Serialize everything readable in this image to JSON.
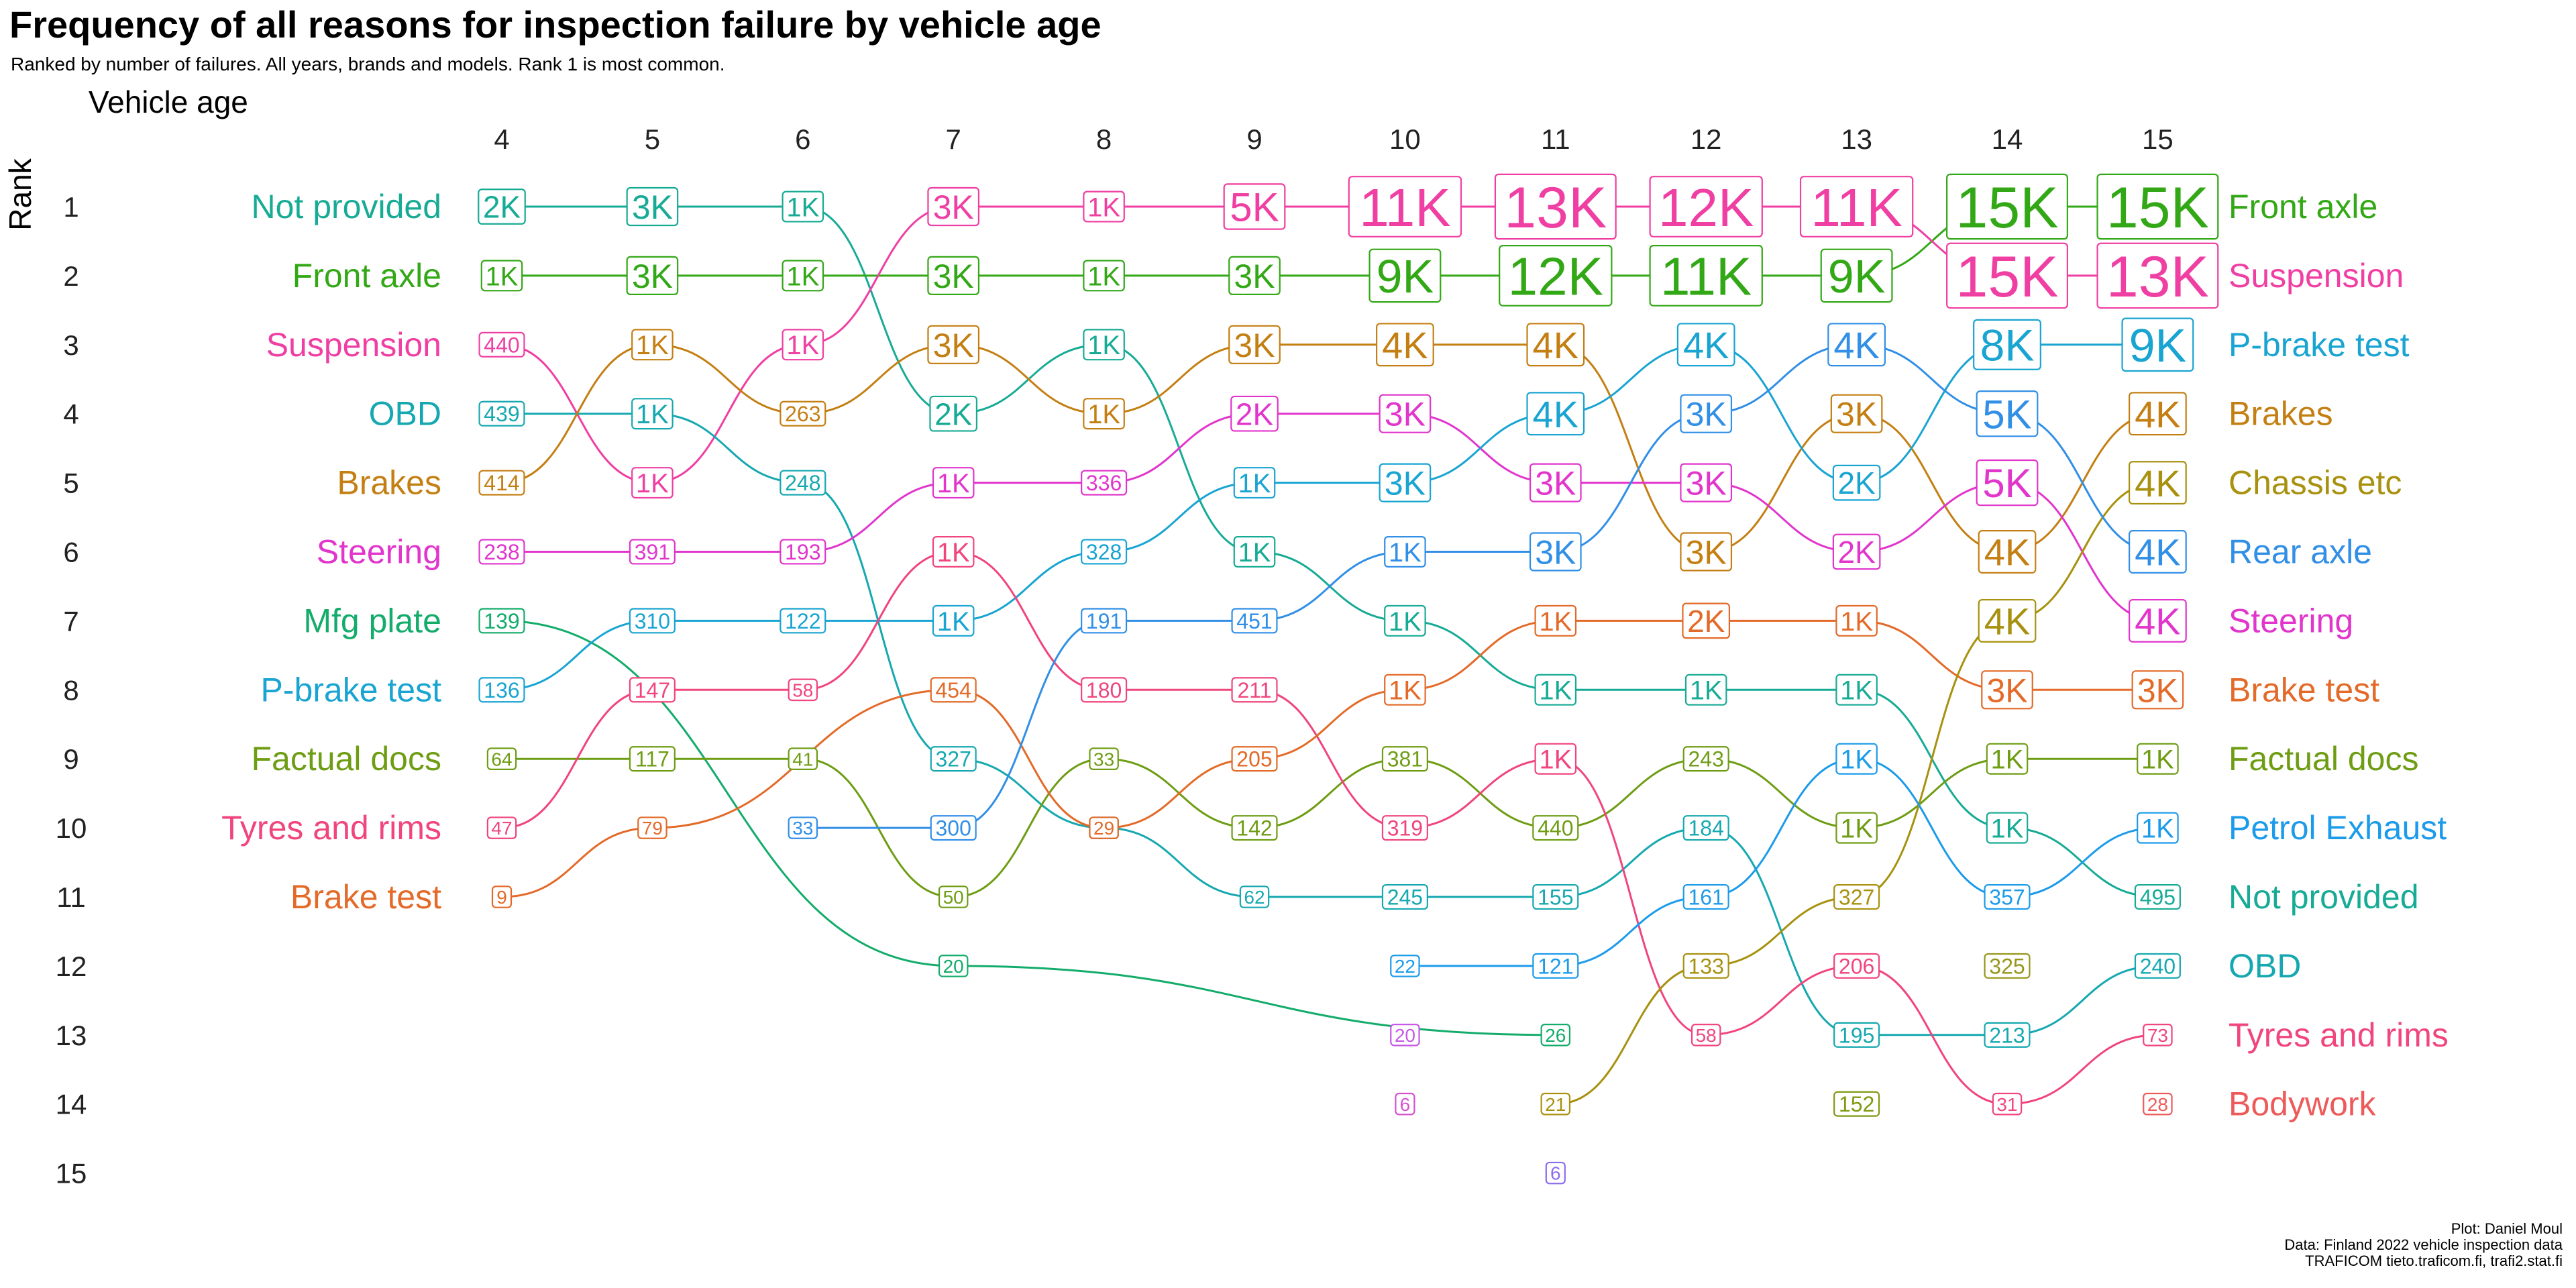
{
  "title": "Frequency of all reasons for inspection failure by vehicle age",
  "subtitle": "Ranked by number of failures. All years, brands and models. Rank 1 is most common.",
  "caption": [
    "Plot: Daniel Moul",
    "Data: Finland 2022 vehicle inspection data",
    "TRAFICOM tieto.traficom.fi, trafi2.stat.fi"
  ],
  "colors": {
    "Not provided": "#17ab95",
    "Front axle": "#33a816",
    "Suspension": "#ef3fa3",
    "OBD": "#16a8b0",
    "Brakes": "#c47f13",
    "Steering": "#e135cc",
    "Mfg plate": "#13ac6a",
    "P-brake test": "#19a4d2",
    "Factual docs": "#6e9d14",
    "Tyres and rims": "#f0457d",
    "Brake test": "#e36a28",
    "Chassis etc": "#a7910e",
    "Rear axle": "#318fe6",
    "Petrol Exhaust": "#1c9bea",
    "Bodywork": "#ee5a5a",
    "Other": "#8b6cf0"
  },
  "chart_data": {
    "type": "bump",
    "title": "Frequency of all reasons for inspection failure by vehicle age",
    "subtitle": "Ranked by number of failures. All years, brands and models. Rank 1 is most common.",
    "xlabel": "Vehicle age",
    "ylabel": "Rank",
    "x": [
      4,
      5,
      6,
      7,
      8,
      9,
      10,
      11,
      12,
      13,
      14,
      15
    ],
    "ranks": [
      1,
      2,
      3,
      4,
      5,
      6,
      7,
      8,
      9,
      10,
      11,
      12,
      13,
      14,
      15
    ],
    "left_labels": [
      "Not provided",
      "Front axle",
      "Suspension",
      "OBD",
      "Brakes",
      "Steering",
      "Mfg plate",
      "P-brake test",
      "Factual docs",
      "Tyres and rims",
      "Brake test"
    ],
    "right_labels": [
      "Front axle",
      "Suspension",
      "P-brake test",
      "Brakes",
      "Chassis etc",
      "Rear axle",
      "Steering",
      "Brake test",
      "Factual docs",
      "Petrol Exhaust",
      "Not provided",
      "OBD",
      "Tyres and rims",
      "Bodywork"
    ],
    "series": [
      {
        "name": "Not provided",
        "points": [
          [
            4,
            1,
            "2K"
          ],
          [
            5,
            1,
            "3K"
          ],
          [
            6,
            1,
            "1K"
          ],
          [
            7,
            4,
            "2K"
          ],
          [
            8,
            3,
            "1K"
          ],
          [
            9,
            6,
            "1K"
          ],
          [
            10,
            7,
            "1K"
          ],
          [
            11,
            8,
            "1K"
          ],
          [
            12,
            8,
            "1K"
          ],
          [
            13,
            8,
            "1K"
          ],
          [
            14,
            10,
            "1K"
          ],
          [
            15,
            11,
            "495"
          ]
        ]
      },
      {
        "name": "Front axle",
        "points": [
          [
            4,
            2,
            "1K"
          ],
          [
            5,
            2,
            "3K"
          ],
          [
            6,
            2,
            "1K"
          ],
          [
            7,
            2,
            "3K"
          ],
          [
            8,
            2,
            "1K"
          ],
          [
            9,
            2,
            "3K"
          ],
          [
            10,
            2,
            "9K"
          ],
          [
            11,
            2,
            "12K"
          ],
          [
            12,
            2,
            "11K"
          ],
          [
            13,
            2,
            "9K"
          ],
          [
            14,
            1,
            "15K"
          ],
          [
            15,
            1,
            "15K"
          ]
        ]
      },
      {
        "name": "Suspension",
        "points": [
          [
            4,
            3,
            "440"
          ],
          [
            5,
            5,
            "1K"
          ],
          [
            6,
            3,
            "1K"
          ],
          [
            7,
            1,
            "3K"
          ],
          [
            8,
            1,
            "1K"
          ],
          [
            9,
            1,
            "5K"
          ],
          [
            10,
            1,
            "11K"
          ],
          [
            11,
            1,
            "13K"
          ],
          [
            12,
            1,
            "12K"
          ],
          [
            13,
            1,
            "11K"
          ],
          [
            14,
            2,
            "15K"
          ],
          [
            15,
            2,
            "13K"
          ]
        ]
      },
      {
        "name": "OBD",
        "points": [
          [
            4,
            4,
            "439"
          ],
          [
            5,
            4,
            "1K"
          ],
          [
            6,
            5,
            "248"
          ],
          [
            7,
            9,
            "327"
          ],
          [
            8,
            10,
            "29"
          ],
          [
            9,
            11,
            "62"
          ],
          [
            10,
            11,
            "245"
          ],
          [
            11,
            11,
            "155"
          ],
          [
            12,
            10,
            "184"
          ],
          [
            13,
            13,
            "195"
          ],
          [
            14,
            13,
            "213"
          ],
          [
            15,
            12,
            "240"
          ]
        ]
      },
      {
        "name": "Brakes",
        "points": [
          [
            4,
            5,
            "414"
          ],
          [
            5,
            3,
            "1K"
          ],
          [
            6,
            4,
            "263"
          ],
          [
            7,
            3,
            "3K"
          ],
          [
            8,
            4,
            "1K"
          ],
          [
            9,
            3,
            "3K"
          ],
          [
            10,
            3,
            "4K"
          ],
          [
            11,
            3,
            "4K"
          ],
          [
            12,
            6,
            "3K"
          ],
          [
            13,
            4,
            "3K"
          ],
          [
            14,
            6,
            "4K"
          ],
          [
            15,
            4,
            "4K"
          ]
        ]
      },
      {
        "name": "Steering",
        "points": [
          [
            4,
            6,
            "238"
          ],
          [
            5,
            6,
            "391"
          ],
          [
            6,
            6,
            "193"
          ],
          [
            7,
            5,
            "1K"
          ],
          [
            8,
            5,
            "336"
          ],
          [
            9,
            4,
            "2K"
          ],
          [
            10,
            4,
            "3K"
          ],
          [
            11,
            5,
            "3K"
          ],
          [
            12,
            5,
            "3K"
          ],
          [
            13,
            6,
            "2K"
          ],
          [
            14,
            5,
            "5K"
          ],
          [
            15,
            7,
            "4K"
          ]
        ]
      },
      {
        "name": "Mfg plate",
        "points": [
          [
            4,
            7,
            "139"
          ],
          [
            7,
            12,
            "20"
          ],
          [
            11,
            13,
            "26"
          ]
        ]
      },
      {
        "name": "P-brake test",
        "points": [
          [
            4,
            8,
            "136"
          ],
          [
            5,
            7,
            "310"
          ],
          [
            6,
            7,
            "122"
          ],
          [
            7,
            7,
            "1K"
          ],
          [
            8,
            6,
            "328"
          ],
          [
            9,
            5,
            "1K"
          ],
          [
            10,
            5,
            "3K"
          ],
          [
            11,
            4,
            "4K"
          ],
          [
            12,
            3,
            "4K"
          ],
          [
            13,
            5,
            "2K"
          ],
          [
            14,
            3,
            "8K"
          ],
          [
            15,
            3,
            "9K"
          ]
        ]
      },
      {
        "name": "Factual docs",
        "points": [
          [
            4,
            9,
            "64"
          ],
          [
            5,
            9,
            "117"
          ],
          [
            6,
            9,
            "41"
          ],
          [
            7,
            11,
            "50"
          ],
          [
            8,
            9,
            "33"
          ],
          [
            9,
            10,
            "142"
          ],
          [
            10,
            9,
            "381"
          ],
          [
            11,
            10,
            "440"
          ],
          [
            12,
            9,
            "243"
          ],
          [
            13,
            10,
            "1K"
          ],
          [
            14,
            9,
            "1K"
          ],
          [
            15,
            9,
            "1K"
          ]
        ]
      },
      {
        "name": "Tyres and rims",
        "points": [
          [
            4,
            10,
            "47"
          ],
          [
            5,
            8,
            "147"
          ],
          [
            6,
            8,
            "58"
          ],
          [
            7,
            6,
            "1K"
          ],
          [
            8,
            8,
            "180"
          ],
          [
            9,
            8,
            "211"
          ],
          [
            10,
            10,
            "319"
          ],
          [
            11,
            9,
            "1K"
          ],
          [
            12,
            13,
            "58"
          ],
          [
            13,
            12,
            "206"
          ],
          [
            14,
            14,
            "31"
          ],
          [
            15,
            13,
            "73"
          ]
        ]
      },
      {
        "name": "Brake test",
        "points": [
          [
            4,
            11,
            "9"
          ],
          [
            5,
            10,
            "79"
          ],
          [
            7,
            8,
            "454"
          ],
          [
            8,
            10,
            "29"
          ],
          [
            9,
            9,
            "205"
          ],
          [
            10,
            8,
            "1K"
          ],
          [
            11,
            7,
            "1K"
          ],
          [
            12,
            7,
            "2K"
          ],
          [
            13,
            7,
            "1K"
          ],
          [
            14,
            8,
            "3K"
          ],
          [
            15,
            8,
            "3K"
          ]
        ]
      },
      {
        "name": "Chassis etc",
        "points": [
          [
            11,
            14,
            "21"
          ],
          [
            12,
            12,
            "133"
          ],
          [
            13,
            11,
            "327"
          ],
          [
            14,
            7,
            "4K"
          ],
          [
            15,
            5,
            "4K"
          ]
        ]
      },
      {
        "name": "Rear axle",
        "points": [
          [
            6,
            10,
            "33"
          ],
          [
            7,
            10,
            "300"
          ],
          [
            8,
            7,
            "191"
          ],
          [
            9,
            7,
            "451"
          ],
          [
            10,
            6,
            "1K"
          ],
          [
            11,
            6,
            "3K"
          ],
          [
            12,
            4,
            "3K"
          ],
          [
            13,
            3,
            "4K"
          ],
          [
            14,
            4,
            "5K"
          ],
          [
            15,
            6,
            "4K"
          ]
        ]
      },
      {
        "name": "Petrol Exhaust",
        "points": [
          [
            10,
            12,
            "22"
          ],
          [
            11,
            12,
            "121"
          ],
          [
            12,
            11,
            "161"
          ],
          [
            13,
            9,
            "1K"
          ],
          [
            14,
            11,
            "357"
          ],
          [
            15,
            10,
            "1K"
          ]
        ]
      },
      {
        "name": "Bodywork",
        "points": [
          [
            15,
            14,
            "28"
          ]
        ]
      },
      {
        "name": "",
        "points": [
          [
            10,
            13,
            "20"
          ]
        ]
      },
      {
        "name": "",
        "points": [
          [
            10,
            14,
            "6"
          ]
        ]
      },
      {
        "name": "",
        "points": [
          [
            11,
            15,
            "6"
          ]
        ]
      },
      {
        "name": "",
        "points": [
          [
            13,
            14,
            "152"
          ]
        ]
      },
      {
        "name": "",
        "points": [
          [
            14,
            12,
            "325"
          ]
        ]
      }
    ],
    "point_colors": {
      "10-13": "#c45ae6",
      "10-14": "#d650d0",
      "11-15": "#8b6cf0",
      "13-14": "#7f9a12",
      "14-12": "#97961a"
    },
    "grid": false,
    "legend": "none"
  }
}
